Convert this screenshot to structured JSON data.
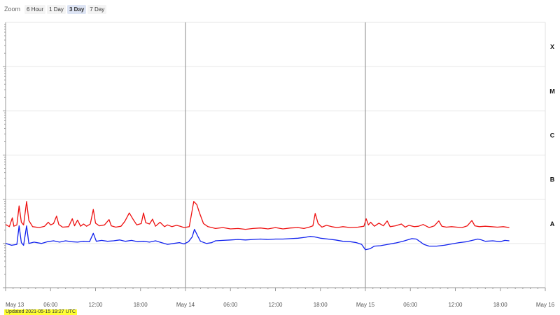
{
  "zoom": {
    "label": "Zoom",
    "buttons": [
      {
        "label": "6 Hour",
        "active": false
      },
      {
        "label": "1 Day",
        "active": false
      },
      {
        "label": "3 Day",
        "active": true
      },
      {
        "label": "7 Day",
        "active": false
      }
    ]
  },
  "updated_text": "Updated 2021-05-15 19:27 UTC",
  "chart_data": {
    "type": "line",
    "title": "",
    "xlabel": "",
    "ylabel": "",
    "x_unit": "hours since May 13 00:00 UTC",
    "xlim": [
      0,
      72
    ],
    "x_ticks": [
      {
        "x": 0,
        "label": "May 13",
        "major": true
      },
      {
        "x": 6,
        "label": "06:00",
        "major": false
      },
      {
        "x": 12,
        "label": "12:00",
        "major": false
      },
      {
        "x": 18,
        "label": "18:00",
        "major": false
      },
      {
        "x": 24,
        "label": "May 14",
        "major": true
      },
      {
        "x": 30,
        "label": "06:00",
        "major": false
      },
      {
        "x": 36,
        "label": "12:00",
        "major": false
      },
      {
        "x": 42,
        "label": "18:00",
        "major": false
      },
      {
        "x": 48,
        "label": "May 15",
        "major": true
      },
      {
        "x": 54,
        "label": "06:00",
        "major": false
      },
      {
        "x": 60,
        "label": "12:00",
        "major": false
      },
      {
        "x": 66,
        "label": "18:00",
        "major": false
      },
      {
        "x": 72,
        "label": "May 16",
        "major": true
      }
    ],
    "y_scale": "log",
    "ylim_log10": [
      -9,
      -3
    ],
    "flare_classes": [
      {
        "label": "A",
        "log10": -8
      },
      {
        "label": "B",
        "log10": -7
      },
      {
        "label": "C",
        "log10": -6
      },
      {
        "label": "M",
        "log10": -5
      },
      {
        "label": "X",
        "log10": -4
      }
    ],
    "grid": true,
    "series": [
      {
        "color": "#ee1111",
        "points": [
          [
            0,
            -7.57
          ],
          [
            0.5,
            -7.62
          ],
          [
            0.9,
            -7.42
          ],
          [
            1.1,
            -7.61
          ],
          [
            1.5,
            -7.58
          ],
          [
            1.8,
            -7.15
          ],
          [
            2.1,
            -7.52
          ],
          [
            2.4,
            -7.58
          ],
          [
            2.8,
            -7.05
          ],
          [
            3.1,
            -7.48
          ],
          [
            3.6,
            -7.62
          ],
          [
            4.5,
            -7.64
          ],
          [
            5.2,
            -7.61
          ],
          [
            5.7,
            -7.52
          ],
          [
            6.0,
            -7.58
          ],
          [
            6.4,
            -7.55
          ],
          [
            6.8,
            -7.38
          ],
          [
            7.1,
            -7.57
          ],
          [
            7.6,
            -7.63
          ],
          [
            8.4,
            -7.62
          ],
          [
            8.9,
            -7.44
          ],
          [
            9.2,
            -7.6
          ],
          [
            9.6,
            -7.47
          ],
          [
            10.0,
            -7.61
          ],
          [
            10.4,
            -7.56
          ],
          [
            10.8,
            -7.61
          ],
          [
            11.3,
            -7.56
          ],
          [
            11.7,
            -7.23
          ],
          [
            12.0,
            -7.54
          ],
          [
            12.5,
            -7.6
          ],
          [
            13.2,
            -7.58
          ],
          [
            13.8,
            -7.46
          ],
          [
            14.1,
            -7.6
          ],
          [
            14.7,
            -7.63
          ],
          [
            15.4,
            -7.61
          ],
          [
            15.9,
            -7.5
          ],
          [
            16.5,
            -7.31
          ],
          [
            17.0,
            -7.45
          ],
          [
            17.5,
            -7.58
          ],
          [
            18.1,
            -7.55
          ],
          [
            18.4,
            -7.31
          ],
          [
            18.7,
            -7.53
          ],
          [
            19.2,
            -7.56
          ],
          [
            19.6,
            -7.45
          ],
          [
            20.0,
            -7.61
          ],
          [
            20.6,
            -7.52
          ],
          [
            21.2,
            -7.62
          ],
          [
            21.6,
            -7.58
          ],
          [
            22.2,
            -7.62
          ],
          [
            22.8,
            -7.59
          ],
          [
            23.3,
            -7.61
          ],
          [
            23.8,
            -7.64
          ],
          [
            24.5,
            -7.62
          ],
          [
            25.1,
            -7.05
          ],
          [
            25.5,
            -7.12
          ],
          [
            25.9,
            -7.32
          ],
          [
            26.4,
            -7.55
          ],
          [
            27.0,
            -7.62
          ],
          [
            28.0,
            -7.66
          ],
          [
            29.0,
            -7.64
          ],
          [
            30.0,
            -7.67
          ],
          [
            31.0,
            -7.66
          ],
          [
            32.0,
            -7.68
          ],
          [
            33.0,
            -7.66
          ],
          [
            34.0,
            -7.65
          ],
          [
            35.0,
            -7.67
          ],
          [
            36.0,
            -7.64
          ],
          [
            37.0,
            -7.67
          ],
          [
            38.0,
            -7.65
          ],
          [
            39.0,
            -7.64
          ],
          [
            39.8,
            -7.66
          ],
          [
            40.5,
            -7.63
          ],
          [
            41.0,
            -7.6
          ],
          [
            41.3,
            -7.32
          ],
          [
            41.7,
            -7.55
          ],
          [
            42.2,
            -7.63
          ],
          [
            42.8,
            -7.59
          ],
          [
            43.5,
            -7.62
          ],
          [
            44.2,
            -7.64
          ],
          [
            45.0,
            -7.62
          ],
          [
            46.0,
            -7.64
          ],
          [
            47.0,
            -7.63
          ],
          [
            47.8,
            -7.61
          ],
          [
            48.1,
            -7.44
          ],
          [
            48.4,
            -7.58
          ],
          [
            48.7,
            -7.52
          ],
          [
            49.2,
            -7.61
          ],
          [
            49.8,
            -7.54
          ],
          [
            50.4,
            -7.6
          ],
          [
            50.9,
            -7.49
          ],
          [
            51.3,
            -7.62
          ],
          [
            52.0,
            -7.6
          ],
          [
            52.8,
            -7.56
          ],
          [
            53.3,
            -7.63
          ],
          [
            53.8,
            -7.59
          ],
          [
            54.5,
            -7.62
          ],
          [
            55.1,
            -7.61
          ],
          [
            55.7,
            -7.57
          ],
          [
            56.5,
            -7.64
          ],
          [
            57.2,
            -7.6
          ],
          [
            57.8,
            -7.49
          ],
          [
            58.2,
            -7.61
          ],
          [
            58.8,
            -7.63
          ],
          [
            59.5,
            -7.62
          ],
          [
            60.2,
            -7.63
          ],
          [
            60.9,
            -7.64
          ],
          [
            61.6,
            -7.6
          ],
          [
            62.2,
            -7.48
          ],
          [
            62.6,
            -7.6
          ],
          [
            63.2,
            -7.62
          ],
          [
            64.0,
            -7.61
          ],
          [
            64.8,
            -7.62
          ],
          [
            65.6,
            -7.63
          ],
          [
            66.4,
            -7.62
          ],
          [
            67.2,
            -7.64
          ]
        ]
      },
      {
        "color": "#1122ee",
        "points": [
          [
            0,
            -8.0
          ],
          [
            0.8,
            -8.04
          ],
          [
            1.5,
            -8.02
          ],
          [
            1.8,
            -7.6
          ],
          [
            2.1,
            -7.98
          ],
          [
            2.4,
            -8.04
          ],
          [
            2.8,
            -7.6
          ],
          [
            3.1,
            -8.0
          ],
          [
            3.8,
            -7.97
          ],
          [
            4.8,
            -8.0
          ],
          [
            5.6,
            -7.96
          ],
          [
            6.4,
            -7.94
          ],
          [
            7.2,
            -7.97
          ],
          [
            8.0,
            -7.94
          ],
          [
            8.8,
            -7.96
          ],
          [
            9.6,
            -7.97
          ],
          [
            10.4,
            -7.95
          ],
          [
            11.2,
            -7.96
          ],
          [
            11.7,
            -7.77
          ],
          [
            12.1,
            -7.95
          ],
          [
            12.8,
            -7.93
          ],
          [
            13.6,
            -7.95
          ],
          [
            14.4,
            -7.94
          ],
          [
            15.2,
            -7.92
          ],
          [
            16.0,
            -7.95
          ],
          [
            16.8,
            -7.93
          ],
          [
            17.6,
            -7.96
          ],
          [
            18.4,
            -7.95
          ],
          [
            19.2,
            -7.97
          ],
          [
            20.0,
            -7.94
          ],
          [
            20.8,
            -7.98
          ],
          [
            21.6,
            -8.02
          ],
          [
            22.4,
            -8.0
          ],
          [
            23.2,
            -7.98
          ],
          [
            23.8,
            -8.01
          ],
          [
            24.4,
            -7.96
          ],
          [
            24.9,
            -7.85
          ],
          [
            25.2,
            -7.68
          ],
          [
            25.6,
            -7.82
          ],
          [
            26.0,
            -7.95
          ],
          [
            26.8,
            -8.0
          ],
          [
            27.5,
            -7.98
          ],
          [
            28.0,
            -7.94
          ],
          [
            29.0,
            -7.93
          ],
          [
            30.0,
            -7.92
          ],
          [
            31.0,
            -7.91
          ],
          [
            32.0,
            -7.92
          ],
          [
            33.0,
            -7.91
          ],
          [
            34.0,
            -7.9
          ],
          [
            35.0,
            -7.91
          ],
          [
            36.0,
            -7.9
          ],
          [
            37.0,
            -7.9
          ],
          [
            38.0,
            -7.89
          ],
          [
            39.0,
            -7.88
          ],
          [
            40.0,
            -7.86
          ],
          [
            40.6,
            -7.84
          ],
          [
            41.2,
            -7.85
          ],
          [
            42.0,
            -7.88
          ],
          [
            43.0,
            -7.9
          ],
          [
            44.0,
            -7.92
          ],
          [
            45.0,
            -7.95
          ],
          [
            46.0,
            -7.96
          ],
          [
            46.8,
            -7.98
          ],
          [
            47.5,
            -8.02
          ],
          [
            48.0,
            -8.14
          ],
          [
            48.6,
            -8.12
          ],
          [
            49.2,
            -8.06
          ],
          [
            50.0,
            -8.05
          ],
          [
            51.0,
            -8.02
          ],
          [
            52.0,
            -7.99
          ],
          [
            53.0,
            -7.95
          ],
          [
            53.6,
            -7.92
          ],
          [
            54.2,
            -7.89
          ],
          [
            54.8,
            -7.9
          ],
          [
            55.3,
            -7.96
          ],
          [
            55.8,
            -8.02
          ],
          [
            56.5,
            -8.06
          ],
          [
            57.5,
            -8.06
          ],
          [
            58.5,
            -8.04
          ],
          [
            59.5,
            -8.01
          ],
          [
            60.5,
            -7.98
          ],
          [
            61.5,
            -7.96
          ],
          [
            62.5,
            -7.92
          ],
          [
            63.0,
            -7.9
          ],
          [
            63.5,
            -7.92
          ],
          [
            64.0,
            -7.95
          ],
          [
            65.0,
            -7.94
          ],
          [
            66.0,
            -7.96
          ],
          [
            66.6,
            -7.93
          ],
          [
            67.2,
            -7.94
          ]
        ]
      }
    ]
  }
}
